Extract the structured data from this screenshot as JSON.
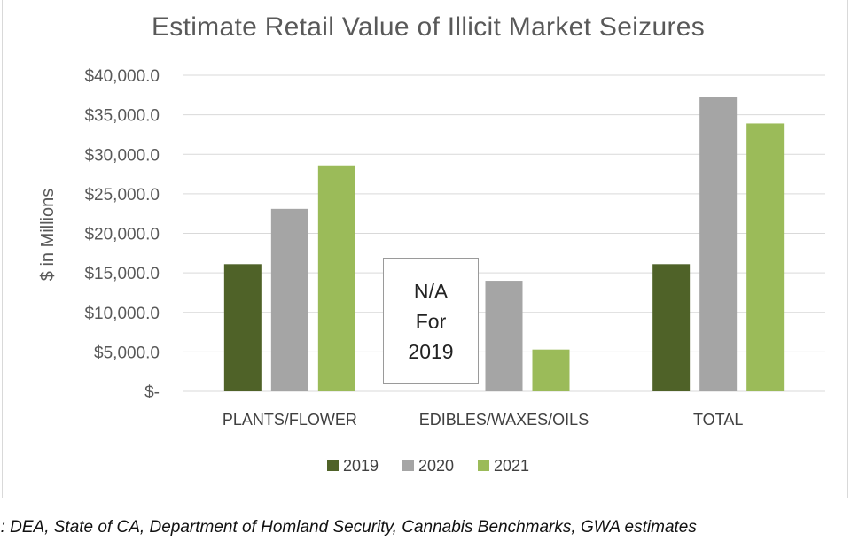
{
  "chart_data": {
    "type": "bar",
    "title": "Estimate Retail Value of Illicit Market Seizures",
    "ylabel": "$ in Millions",
    "xlabel": "",
    "categories": [
      "PLANTS/FLOWER",
      "EDIBLES/WAXES/OILS",
      "TOTAL"
    ],
    "series": [
      {
        "name": "2019",
        "values": [
          16100,
          null,
          16100
        ],
        "color": "#4f6228"
      },
      {
        "name": "2020",
        "values": [
          23100,
          14000,
          37200
        ],
        "color": "#a5a5a5"
      },
      {
        "name": "2021",
        "values": [
          28600,
          5300,
          33900
        ],
        "color": "#9bbb59"
      }
    ],
    "ylim": [
      0,
      40000
    ],
    "y_ticks": [
      0,
      5000,
      10000,
      15000,
      20000,
      25000,
      30000,
      35000,
      40000
    ],
    "y_tick_labels": [
      "$-",
      "$5,000.0",
      "$10,000.0",
      "$15,000.0",
      "$20,000.0",
      "$25,000.0",
      "$30,000.0",
      "$35,000.0",
      "$40,000.0"
    ],
    "grid": true,
    "legend_position": "bottom",
    "annotation": [
      "N/A",
      "For",
      "2019"
    ]
  },
  "source_note": "e: DEA, State of CA, Department of Homland Security, Cannabis Benchmarks, GWA estimates"
}
